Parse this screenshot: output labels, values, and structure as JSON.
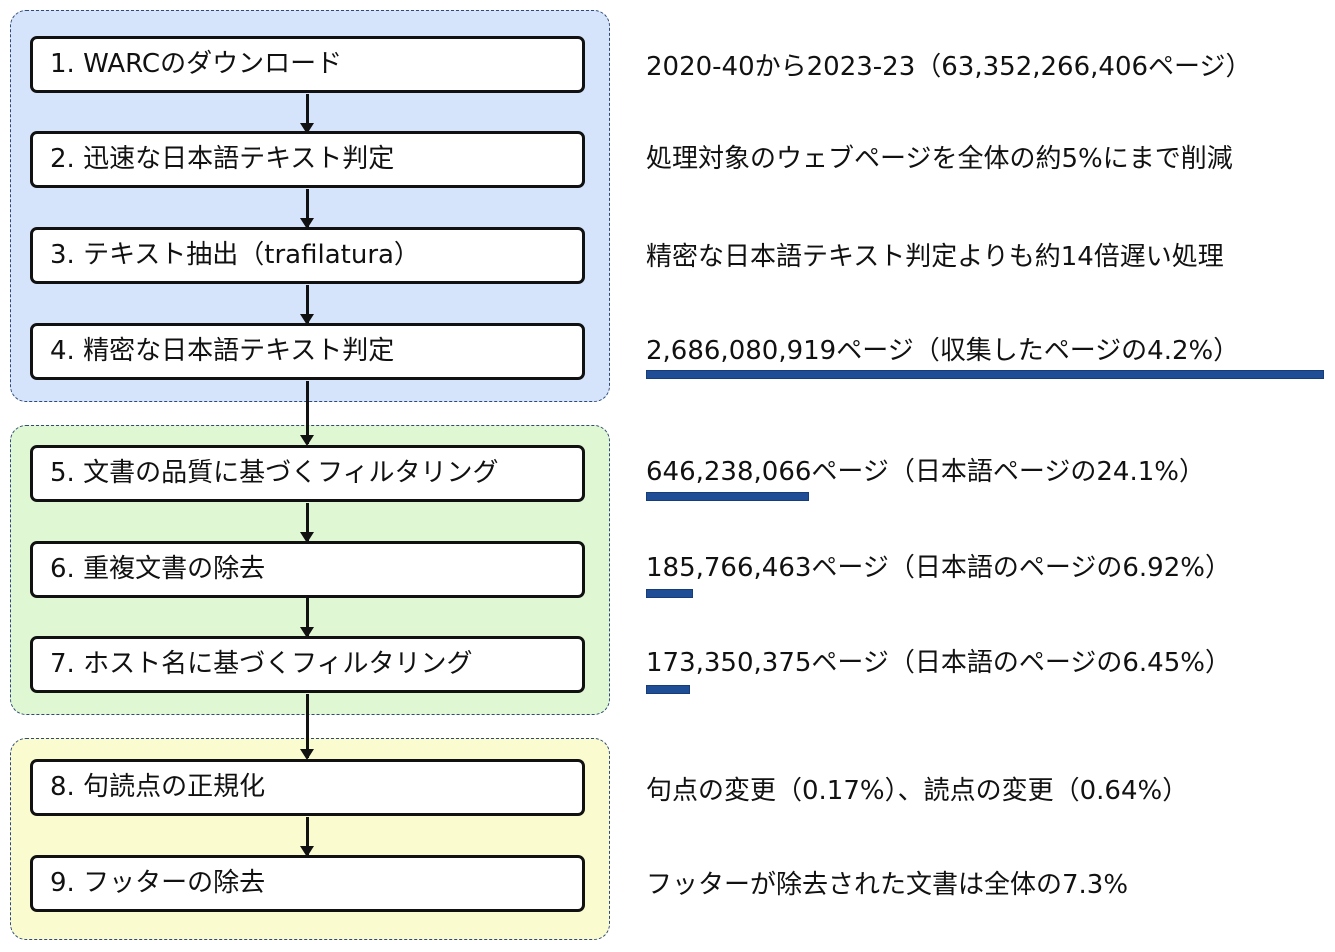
{
  "steps": [
    {
      "label": "1. WARCのダウンロード",
      "note": "2020-40から2023-23（63,352,266,406ページ）"
    },
    {
      "label": "2. 迅速な日本語テキスト判定",
      "note": "処理対象のウェブページを全体の約5%にまで削減"
    },
    {
      "label": "3. テキスト抽出（trafilatura）",
      "note": "精密な日本語テキスト判定よりも約14倍遅い処理"
    },
    {
      "label": "4. 精密な日本語テキスト判定",
      "note": "2,686,080,919ページ（収集したページの4.2%）"
    },
    {
      "label": "5. 文書の品質に基づくフィルタリング",
      "note": "646,238,066ページ（日本語ページの24.1%）"
    },
    {
      "label": "6. 重複文書の除去",
      "note": "185,766,463ページ（日本語のページの6.92%）"
    },
    {
      "label": "7. ホスト名に基づくフィルタリング",
      "note": "173,350,375ページ（日本語のページの6.45%）"
    },
    {
      "label": "8. 句読点の正規化",
      "note": "句点の変更（0.17%）、読点の変更（0.64%）"
    },
    {
      "label": "9. フッターの除去",
      "note": "フッターが除去された文書は全体の7.3%"
    }
  ],
  "page_share_bars": [
    {
      "step": 4,
      "value": 100
    },
    {
      "step": 5,
      "value": 24.1
    },
    {
      "step": 6,
      "value": 6.92
    },
    {
      "step": 7,
      "value": 6.45
    }
  ],
  "colors": {
    "group_download": "#d6e4fb",
    "group_filter": "#dff7d3",
    "group_cleanup": "#fbfbd0",
    "bar": "#1f4e96"
  }
}
